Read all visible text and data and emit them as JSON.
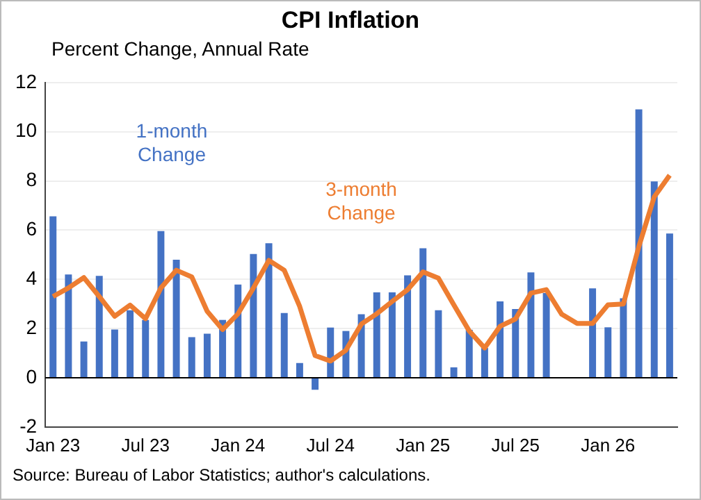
{
  "chart_data": {
    "type": "bar",
    "title": "CPI Inflation",
    "ylabel": "Percent Change, Annual Rate",
    "categories": [
      "Jan 23",
      null,
      null,
      null,
      null,
      null,
      "Jul 23",
      null,
      null,
      null,
      null,
      null,
      "Jan 24",
      null,
      null,
      null,
      null,
      null,
      "Jul 24",
      null,
      null,
      null,
      null,
      null,
      "Jan 25",
      null,
      null,
      null,
      null,
      null,
      "Jul 25",
      null,
      null,
      null,
      null,
      null,
      "Jan 26",
      null,
      null,
      null,
      null
    ],
    "series": [
      {
        "name": "1-month Change",
        "color": "#4472c4",
        "values": [
          6.56,
          4.2,
          1.47,
          4.14,
          1.96,
          2.74,
          2.35,
          5.96,
          4.8,
          1.65,
          1.79,
          2.35,
          3.79,
          5.03,
          5.47,
          2.63,
          0.6,
          -0.49,
          2.04,
          1.9,
          2.58,
          3.47,
          3.47,
          4.16,
          5.26,
          2.74,
          0.42,
          1.95,
          1.21,
          3.1,
          2.79,
          4.28,
          3.44,
          null,
          null,
          3.63,
          2.05,
          3.23,
          10.91,
          7.98,
          5.86
        ]
      },
      {
        "name": "3-month Change",
        "type": "line",
        "color": "#ed7d31",
        "values": [
          3.3,
          3.65,
          4.07,
          3.3,
          2.5,
          2.95,
          2.4,
          3.65,
          4.37,
          4.1,
          2.7,
          1.96,
          2.6,
          3.65,
          4.77,
          4.37,
          2.9,
          0.9,
          0.68,
          1.12,
          2.18,
          2.6,
          3.1,
          3.58,
          4.3,
          4.05,
          2.96,
          1.9,
          1.21,
          2.09,
          2.39,
          3.44,
          3.58,
          2.58,
          2.21,
          2.21,
          2.96,
          3.0,
          5.33,
          7.35,
          8.23
        ]
      }
    ],
    "ylim": [
      -2,
      12
    ],
    "yticks": [
      -2,
      0,
      2,
      4,
      6,
      8,
      10,
      12
    ],
    "grid": "y",
    "legend": false,
    "marker": "none",
    "annotations": [
      "Source: Bureau of Labor Statistics; author's calculations."
    ]
  }
}
